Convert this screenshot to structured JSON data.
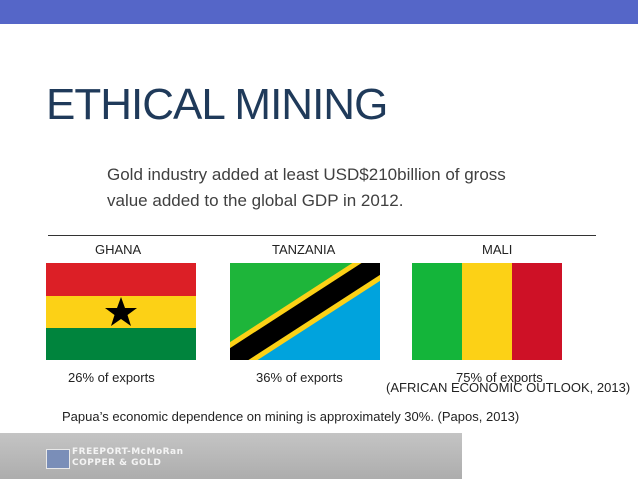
{
  "slide": {
    "title": "ETHICAL MINING",
    "subtitle": "Gold industry added at least USD$210billion of gross value added to the global GDP in 2012.",
    "source": "(AFRICAN ECONOMIC OUTLOOK, 2013)",
    "footnote": "Papua’s economic dependence on mining is approximately 30%. (Papos, 2013)"
  },
  "countries": [
    {
      "name": "GHANA",
      "exports": "26% of exports",
      "flag_icon": "ghana-flag-icon"
    },
    {
      "name": "TANZANIA",
      "exports": "36% of exports",
      "flag_icon": "tanzania-flag-icon"
    },
    {
      "name": "MALI",
      "exports": "75% of exports",
      "flag_icon": "mali-flag-icon"
    }
  ],
  "footer": {
    "logo_line1": "FREEPORT-McMoRan",
    "logo_line2": "COPPER & GOLD"
  },
  "colors": {
    "accent_bar": "#5566c8",
    "title": "#1f3a5a",
    "ghana_red": "#dc1f26",
    "ghana_yellow": "#fcd116",
    "ghana_green": "#00843d",
    "tanzania_green": "#1eb53a",
    "tanzania_blue": "#00a3dd",
    "tanzania_yellow": "#fcd116",
    "mali_green": "#14b53a",
    "mali_yellow": "#fcd116",
    "mali_red": "#ce1126"
  }
}
